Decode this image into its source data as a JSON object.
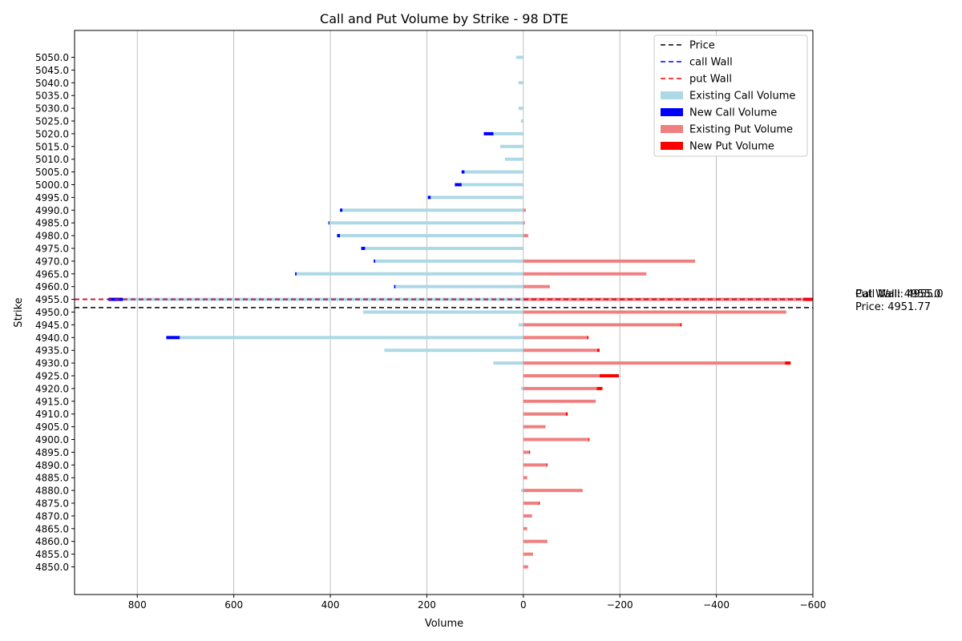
{
  "chart_data": {
    "type": "bar",
    "orientation": "horizontal",
    "title": "Call and Put Volume by Strike - 98 DTE",
    "xlabel": "Volume",
    "ylabel": "Strike",
    "x_axis": {
      "inverted": true,
      "xlim": [
        930,
        -600
      ],
      "ticks": [
        800,
        600,
        400,
        200,
        0,
        -200,
        -400,
        -600
      ],
      "tick_labels": [
        "800",
        "600",
        "400",
        "200",
        "0",
        "−200",
        "−400",
        "−600"
      ]
    },
    "grid": "vertical",
    "legend_placement": "top-right",
    "strikes": [
      "4850.0",
      "4855.0",
      "4860.0",
      "4865.0",
      "4870.0",
      "4875.0",
      "4880.0",
      "4885.0",
      "4890.0",
      "4895.0",
      "4900.0",
      "4905.0",
      "4910.0",
      "4915.0",
      "4920.0",
      "4925.0",
      "4930.0",
      "4935.0",
      "4940.0",
      "4945.0",
      "4950.0",
      "4955.0",
      "4960.0",
      "4965.0",
      "4970.0",
      "4975.0",
      "4980.0",
      "4985.0",
      "4990.0",
      "4995.0",
      "5000.0",
      "5005.0",
      "5010.0",
      "5015.0",
      "5020.0",
      "5025.0",
      "5030.0",
      "5035.0",
      "5040.0",
      "5045.0",
      "5050.0"
    ],
    "series": [
      {
        "name": "Existing Call Volume",
        "color": "#add8e6",
        "values": [
          0,
          0,
          0,
          0,
          0,
          0,
          5,
          0,
          0,
          0,
          0,
          0,
          0,
          0,
          5,
          0,
          62,
          288,
          712,
          10,
          332,
          830,
          265,
          470,
          307,
          328,
          380,
          402,
          375,
          192,
          128,
          122,
          38,
          48,
          62,
          5,
          10,
          0,
          10,
          0,
          15
        ]
      },
      {
        "name": "New Call Volume",
        "color": "#0000ff",
        "values": [
          0,
          0,
          0,
          0,
          0,
          0,
          0,
          0,
          0,
          0,
          0,
          0,
          0,
          0,
          0,
          0,
          0,
          0,
          28,
          0,
          0,
          30,
          3,
          3,
          3,
          8,
          6,
          2,
          5,
          6,
          14,
          6,
          0,
          0,
          20,
          0,
          0,
          0,
          0,
          0,
          0
        ]
      },
      {
        "name": "Existing Put Volume",
        "color": "#f08080",
        "values": [
          -10,
          -20,
          -50,
          -8,
          -18,
          -32,
          -123,
          -8,
          -48,
          -12,
          -135,
          -46,
          -88,
          -150,
          -152,
          -158,
          -542,
          -153,
          -132,
          -325,
          -545,
          -580,
          -55,
          -255,
          -356,
          0,
          -10,
          -3,
          -5,
          0,
          0,
          0,
          0,
          0,
          0,
          0,
          0,
          0,
          0,
          0,
          0
        ]
      },
      {
        "name": "New Put Volume",
        "color": "#ff0000",
        "values": [
          0,
          0,
          0,
          0,
          0,
          -2,
          0,
          0,
          -2,
          -2,
          -2,
          0,
          -4,
          0,
          -12,
          -40,
          -12,
          -5,
          -3,
          -3,
          0,
          -20,
          0,
          0,
          0,
          0,
          0,
          0,
          0,
          0,
          0,
          0,
          0,
          0,
          0,
          0,
          0,
          0,
          0,
          0,
          0
        ]
      }
    ],
    "lines": [
      {
        "name": "Price",
        "color": "#000000",
        "value": 4951.77
      },
      {
        "name": "call Wall",
        "color": "#0000ff",
        "value": 4955.0
      },
      {
        "name": "put Wall",
        "color": "#ff0000",
        "value": 4955.0
      }
    ],
    "annotations": {
      "call_wall": "Call Wall: 4955.0",
      "put_wall": "Put Wall: 4955.0",
      "price": "Price: 4951.77"
    }
  }
}
